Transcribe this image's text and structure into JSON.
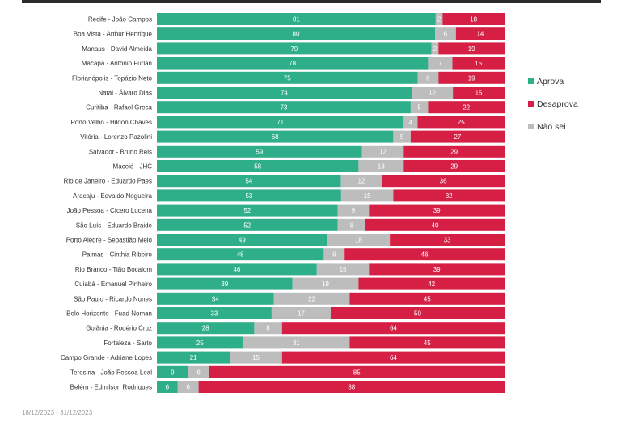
{
  "chart_data": {
    "type": "bar",
    "orientation": "horizontal",
    "stacked": true,
    "categories": [
      "Recife - João Campos",
      "Boa Vista - Arthur Henrique",
      "Manaus - David Almeida",
      "Macapá - Antônio Furlan",
      "Florianópolis - Topázio Neto",
      "Natal - Álvaro Dias",
      "Curitiba - Rafael Greca",
      "Porto Velho - Hildon Chaves",
      "Vitória - Lorenzo Pazolini",
      "Salvador - Bruno Reis",
      "Maceió - JHC",
      "Rio de Janeiro - Eduardo Paes",
      "Aracaju - Edvaldo Nogueira",
      "João Pessoa - Cícero Lucena",
      "São Luís - Eduardo Braide",
      "Porto Alegre - Sebastião Melo",
      "Palmas - Cinthia Ribeiro",
      "Rio Branco - Tião Bocalom",
      "Cuiabá - Emanuel Pinheiro",
      "São Paulo - Ricardo Nunes",
      "Belo Horizonte - Fuad Noman",
      "Goiânia - Rogério Cruz",
      "Fortaleza - Sarto",
      "Campo Grande - Adriane Lopes",
      "Teresina - João Pessoa Leal",
      "Belém - Edmilson Rodrigues"
    ],
    "series": [
      {
        "name": "Aprova",
        "color": "#2fae8a",
        "values": [
          81,
          80,
          79,
          78,
          75,
          74,
          73,
          71,
          68,
          59,
          58,
          54,
          53,
          52,
          52,
          49,
          48,
          46,
          39,
          34,
          33,
          28,
          25,
          21,
          9,
          6
        ]
      },
      {
        "name": "Não sei",
        "color": "#bdbdbd",
        "values": [
          2,
          6,
          2,
          7,
          6,
          12,
          5,
          4,
          5,
          12,
          13,
          12,
          15,
          9,
          8,
          18,
          6,
          15,
          19,
          22,
          17,
          8,
          31,
          15,
          6,
          6
        ]
      },
      {
        "name": "Desaprova",
        "color": "#d61f45",
        "values": [
          18,
          14,
          19,
          15,
          19,
          15,
          22,
          25,
          27,
          29,
          29,
          36,
          32,
          39,
          40,
          33,
          46,
          39,
          42,
          45,
          50,
          64,
          45,
          64,
          85,
          88
        ]
      }
    ],
    "legend": {
      "position": "right",
      "order": [
        "Aprova",
        "Desaprova",
        "Não sei"
      ]
    },
    "xlim": [
      0,
      100
    ],
    "grid": false
  },
  "footer": {
    "date_range": "18/12/2023 - 31/12/2023"
  }
}
